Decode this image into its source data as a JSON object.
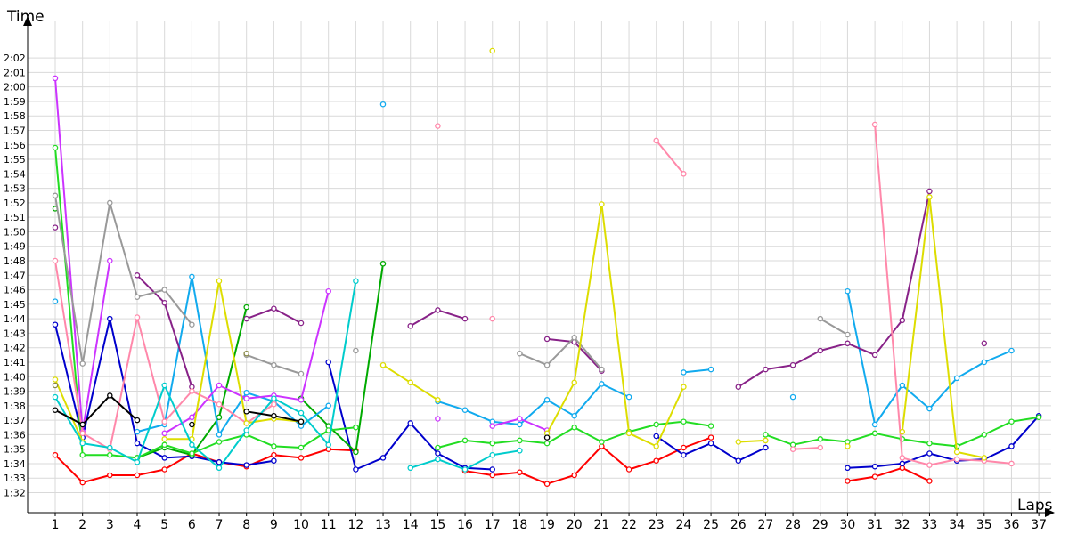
{
  "chart_data": {
    "type": "line",
    "x_axis_title": "Laps",
    "y_axis_title": "Time",
    "x": [
      1,
      2,
      3,
      4,
      5,
      6,
      7,
      8,
      9,
      10,
      11,
      12,
      13,
      14,
      15,
      16,
      17,
      18,
      19,
      20,
      21,
      22,
      23,
      24,
      25,
      26,
      27,
      28,
      29,
      30,
      31,
      32,
      33,
      34,
      35,
      36,
      37
    ],
    "x_tick_labels": [
      "1",
      "2",
      "3",
      "4",
      "5",
      "6",
      "7",
      "8",
      "9",
      "10",
      "11",
      "12",
      "13",
      "14",
      "15",
      "16",
      "17",
      "18",
      "19",
      "20",
      "21",
      "22",
      "23",
      "24",
      "25",
      "26",
      "27",
      "28",
      "29",
      "30",
      "31",
      "32",
      "33",
      "34",
      "35",
      "36",
      "37"
    ],
    "y_unit": "seconds",
    "ylim": [
      4,
      124
    ],
    "y_ticks": [
      92,
      93,
      94,
      95,
      96,
      97,
      98,
      99,
      100,
      101,
      102,
      103,
      104,
      105,
      106,
      107,
      108,
      109,
      110,
      111,
      112,
      113,
      114,
      115,
      116,
      117,
      118,
      119,
      120,
      121,
      122
    ],
    "y_tick_labels": [
      "1:32",
      "1:33",
      "1:34",
      "1:35",
      "1:36",
      "1:37",
      "1:38",
      "1:39",
      "1:40",
      "1:41",
      "1:42",
      "1:43",
      "1:44",
      "1:45",
      "1:46",
      "1:47",
      "1:48",
      "1:49",
      "1:50",
      "1:51",
      "1:52",
      "1:53",
      "1:54",
      "1:55",
      "1:56",
      "1:57",
      "1:58",
      "1:59",
      "2:00",
      "2:01",
      "2:02"
    ],
    "grid": true,
    "series": [
      {
        "color": "#ff0000",
        "values": [
          94.6,
          92.7,
          93.2,
          93.2,
          93.6,
          94.7,
          94.1,
          93.8,
          94.6,
          94.4,
          95.0,
          94.9,
          null,
          null,
          null,
          93.5,
          93.2,
          93.4,
          92.6,
          93.2,
          95.2,
          93.6,
          94.2,
          95.1,
          95.8,
          null,
          null,
          null,
          null,
          92.8,
          93.1,
          93.7,
          92.8,
          null,
          null,
          null,
          null
        ]
      },
      {
        "color": "#0000cc",
        "values": [
          103.6,
          95.8,
          104.0,
          95.4,
          94.4,
          94.5,
          94.1,
          93.9,
          94.2,
          null,
          101.0,
          93.6,
          94.4,
          96.8,
          94.7,
          93.7,
          93.6,
          null,
          null,
          null,
          null,
          null,
          95.9,
          94.6,
          95.4,
          94.2,
          95.1,
          null,
          null,
          93.7,
          93.8,
          94.0,
          94.7,
          94.2,
          94.3,
          95.2,
          97.3
        ]
      },
      {
        "color": "#00aa00",
        "values": [
          111.6,
          null,
          null,
          94.4,
          95.1,
          94.6,
          97.2,
          104.8,
          null,
          98.5,
          96.6,
          94.8,
          107.8,
          null,
          null,
          null,
          null,
          null,
          null,
          null,
          null,
          null,
          null,
          null,
          null,
          null,
          null,
          null,
          null,
          null,
          null,
          null,
          null,
          null,
          null,
          null,
          null
        ]
      },
      {
        "color": "#22dd22",
        "values": [
          115.8,
          94.6,
          94.6,
          94.4,
          95.3,
          94.7,
          95.5,
          96.0,
          95.2,
          95.1,
          96.3,
          96.5,
          null,
          null,
          95.1,
          95.6,
          95.4,
          95.6,
          95.4,
          96.5,
          95.5,
          96.2,
          96.7,
          96.9,
          96.6,
          null,
          96.0,
          95.3,
          95.7,
          95.5,
          96.1,
          95.7,
          95.4,
          95.2,
          96.0,
          96.9,
          97.2
        ]
      },
      {
        "color": "#11aaee",
        "values": [
          105.2,
          null,
          null,
          96.2,
          96.7,
          106.9,
          96.0,
          98.9,
          98.3,
          96.6,
          98.0,
          null,
          118.8,
          null,
          98.3,
          97.7,
          96.9,
          96.7,
          98.4,
          97.3,
          99.5,
          98.6,
          null,
          100.3,
          100.5,
          null,
          null,
          98.6,
          null,
          105.9,
          96.7,
          99.4,
          97.8,
          99.9,
          101.0,
          101.8,
          null
        ]
      },
      {
        "color": "#cc33ff",
        "values": [
          120.6,
          96.2,
          108.0,
          null,
          96.1,
          97.2,
          99.4,
          98.5,
          98.7,
          98.4,
          105.9,
          null,
          null,
          null,
          97.1,
          null,
          96.6,
          97.1,
          96.3,
          null,
          null,
          null,
          null,
          null,
          null,
          null,
          null,
          null,
          null,
          null,
          null,
          null,
          null,
          null,
          null,
          null,
          null
        ]
      },
      {
        "color": "#882288",
        "values": [
          110.3,
          null,
          null,
          107.0,
          105.1,
          99.3,
          null,
          104.0,
          104.7,
          103.7,
          null,
          null,
          null,
          103.5,
          104.6,
          104.0,
          null,
          null,
          102.6,
          102.4,
          100.4,
          null,
          null,
          null,
          null,
          99.3,
          100.5,
          100.8,
          101.8,
          102.3,
          101.5,
          103.9,
          112.8,
          null,
          102.3,
          null,
          null
        ]
      },
      {
        "color": "#999999",
        "values": [
          112.5,
          100.9,
          112.0,
          105.5,
          106.0,
          103.6,
          null,
          101.5,
          100.8,
          100.2,
          null,
          101.8,
          null,
          null,
          null,
          null,
          null,
          101.6,
          100.8,
          102.7,
          100.5,
          null,
          null,
          null,
          null,
          null,
          null,
          null,
          104.0,
          102.9,
          null,
          null,
          null,
          null,
          null,
          null,
          null
        ]
      },
      {
        "color": "#ff88aa",
        "values": [
          108.0,
          96.1,
          95.0,
          104.1,
          96.9,
          99.0,
          98.1,
          96.8,
          98.1,
          null,
          null,
          null,
          null,
          null,
          117.3,
          null,
          104.0,
          null,
          null,
          null,
          null,
          null,
          116.3,
          114.0,
          null,
          null,
          null,
          95.0,
          95.1,
          null,
          117.4,
          94.4,
          93.9,
          94.3,
          94.2,
          94.0,
          null
        ]
      },
      {
        "color": "#dddd00",
        "values": [
          99.8,
          95.5,
          null,
          null,
          95.7,
          95.7,
          106.6,
          96.8,
          97.1,
          96.9,
          null,
          null,
          100.8,
          99.6,
          98.4,
          null,
          122.5,
          null,
          96.1,
          99.6,
          111.9,
          96.1,
          95.2,
          99.3,
          null,
          95.5,
          95.6,
          null,
          null,
          95.2,
          null,
          96.2,
          112.4,
          94.8,
          94.4,
          null,
          null
        ]
      },
      {
        "color": "#00cccc",
        "values": [
          98.6,
          95.4,
          95.1,
          94.1,
          99.4,
          95.3,
          93.7,
          96.3,
          98.5,
          97.5,
          95.3,
          106.6,
          null,
          93.7,
          94.3,
          93.6,
          94.6,
          94.9,
          null,
          null,
          null,
          null,
          null,
          null,
          null,
          null,
          null,
          null,
          null,
          null,
          null,
          null,
          null,
          null,
          null,
          null,
          null
        ]
      },
      {
        "color": "#000000",
        "values": [
          97.7,
          96.7,
          98.7,
          97.0,
          null,
          96.7,
          null,
          97.6,
          97.3,
          96.9,
          null,
          null,
          null,
          null,
          null,
          null,
          null,
          null,
          95.8,
          null,
          null,
          null,
          null,
          null,
          null,
          null,
          null,
          null,
          null,
          null,
          null,
          null,
          null,
          null,
          null,
          null,
          null
        ]
      },
      {
        "color": "#888844",
        "values": [
          99.4,
          null,
          null,
          null,
          null,
          null,
          null,
          101.6,
          null,
          null,
          null,
          null,
          null,
          null,
          null,
          null,
          null,
          null,
          null,
          null,
          null,
          null,
          null,
          null,
          null,
          null,
          null,
          null,
          null,
          null,
          null,
          null,
          null,
          null,
          null,
          null,
          null
        ]
      }
    ]
  }
}
